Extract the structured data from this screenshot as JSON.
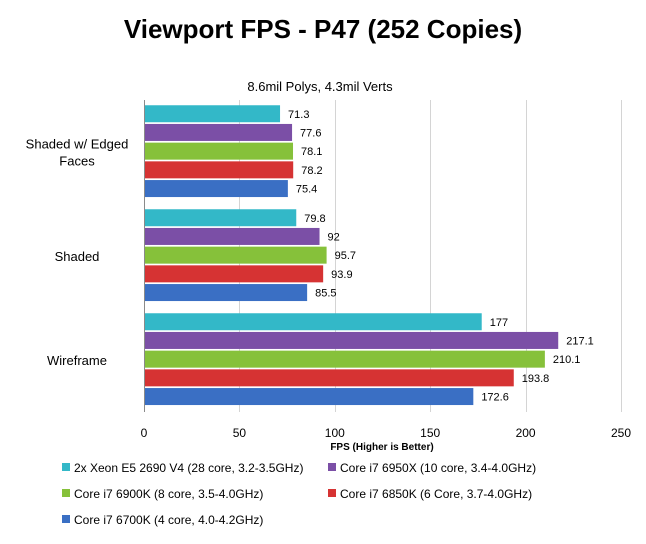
{
  "chart_data": {
    "type": "bar",
    "orientation": "horizontal",
    "title": "Viewport FPS - P47 (252 Copies)",
    "subtitle": "8.6mil Polys, 4.3mil Verts",
    "xlabel": "FPS (Higher is Better)",
    "ylabel": "",
    "xlim": [
      0,
      250
    ],
    "xticks": [
      0,
      50,
      100,
      150,
      200,
      250
    ],
    "grid": true,
    "legend_position": "bottom",
    "categories": [
      "Shaded w/ Edged Faces",
      "Shaded",
      "Wireframe"
    ],
    "series": [
      {
        "name": "2x Xeon E5 2690 V4 (28 core, 3.2-3.5GHz)",
        "color": "#33b8c8",
        "values": [
          71.3,
          79.8,
          177
        ]
      },
      {
        "name": "Core i7 6950X (10 core, 3.4-4.0GHz)",
        "color": "#7b4fa6",
        "values": [
          77.6,
          92,
          217.1
        ]
      },
      {
        "name": "Core i7 6900K (8 core, 3.5-4.0GHz)",
        "color": "#86c13a",
        "values": [
          78.1,
          95.7,
          210.1
        ]
      },
      {
        "name": "Core i7 6850K (6 Core, 3.7-4.0GHz)",
        "color": "#d63333",
        "values": [
          78.2,
          93.9,
          193.8
        ]
      },
      {
        "name": "Core i7 6700K (4 core, 4.0-4.2GHz)",
        "color": "#3a6fc4",
        "values": [
          75.4,
          85.5,
          172.6
        ]
      }
    ]
  }
}
